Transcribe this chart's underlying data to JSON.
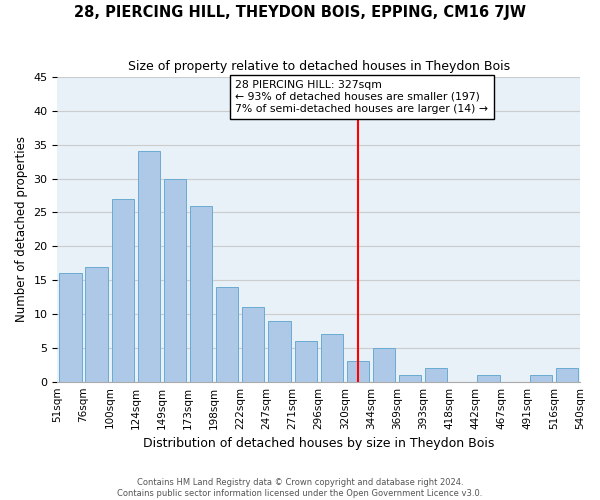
{
  "title": "28, PIERCING HILL, THEYDON BOIS, EPPING, CM16 7JW",
  "subtitle": "Size of property relative to detached houses in Theydon Bois",
  "xlabel": "Distribution of detached houses by size in Theydon Bois",
  "ylabel": "Number of detached properties",
  "footer_line1": "Contains HM Land Registry data © Crown copyright and database right 2024.",
  "footer_line2": "Contains public sector information licensed under the Open Government Licence v3.0.",
  "bin_labels": [
    "51sqm",
    "76sqm",
    "100sqm",
    "124sqm",
    "149sqm",
    "173sqm",
    "198sqm",
    "222sqm",
    "247sqm",
    "271sqm",
    "296sqm",
    "320sqm",
    "344sqm",
    "369sqm",
    "393sqm",
    "418sqm",
    "442sqm",
    "467sqm",
    "491sqm",
    "516sqm",
    "540sqm"
  ],
  "values": [
    16,
    17,
    27,
    34,
    30,
    26,
    14,
    11,
    9,
    6,
    7,
    3,
    5,
    1,
    2,
    0,
    1,
    0,
    1,
    2
  ],
  "bar_color": "#aec9e8",
  "bar_edge_color": "#6aabd2",
  "grid_color": "#cccccc",
  "vline_x": 11.0,
  "vline_color": "red",
  "annotation_text": "28 PIERCING HILL: 327sqm\n← 93% of detached houses are smaller (197)\n7% of semi-detached houses are larger (14) →",
  "annotation_box_color": "white",
  "annotation_box_edge": "black",
  "ylim": [
    0,
    45
  ],
  "yticks": [
    0,
    5,
    10,
    15,
    20,
    25,
    30,
    35,
    40,
    45
  ],
  "bg_color": "#e8f0f8"
}
